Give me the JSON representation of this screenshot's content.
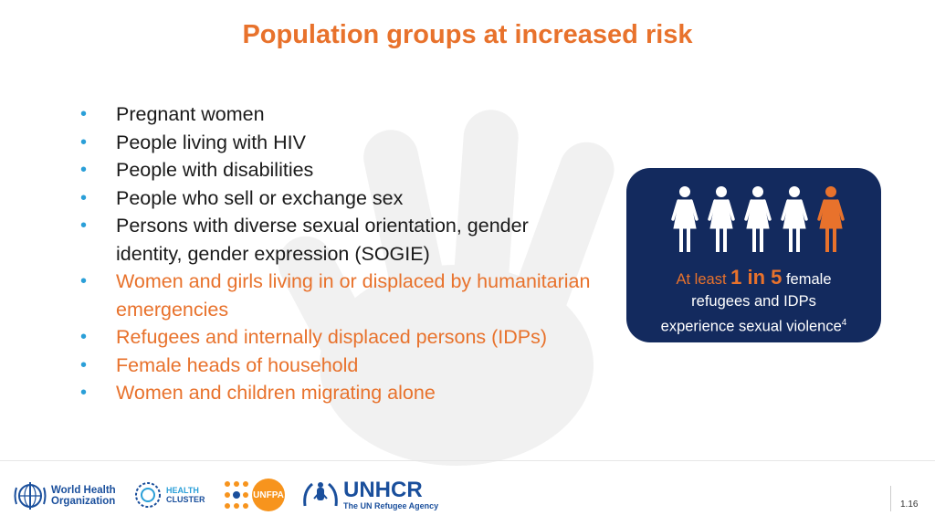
{
  "title": "Population groups at increased risk",
  "bullets": [
    {
      "text": "Pregnant women",
      "color": "#1a1a1a"
    },
    {
      "text": "People living with HIV",
      "color": "#1a1a1a"
    },
    {
      "text": "People with disabilities",
      "color": "#1a1a1a"
    },
    {
      "text": "People who sell or exchange sex",
      "color": "#1a1a1a"
    },
    {
      "text": "Persons with diverse sexual orientation, gender identity, gender expression (SOGIE)",
      "color": "#1a1a1a"
    },
    {
      "text": "Women and girls living in or displaced by humanitarian emergencies",
      "color": "#e8722c"
    },
    {
      "text": "Refugees and internally displaced persons (IDPs)",
      "color": "#e8722c"
    },
    {
      "text": "Female heads of household",
      "color": "#e8722c"
    },
    {
      "text": "Women and children migrating alone",
      "color": "#e8722c"
    }
  ],
  "callout": {
    "prefix": "At least",
    "highlight": "1 in 5",
    "suffix_line1": "female",
    "line2": "refugees and IDPs",
    "line3": "experience sexual violence",
    "footnote": "4",
    "figures_total": 5,
    "figures_highlighted": 1,
    "figure_icon": "woman-figure-icon",
    "bg_color": "#132a5e",
    "accent_color": "#e8722c"
  },
  "logos": {
    "who": {
      "line1": "World Health",
      "line2": "Organization"
    },
    "health_cluster": {
      "line1": "HEALTH",
      "line2": "CLUSTER"
    },
    "unfpa": {
      "text": "UNFPA"
    },
    "unhcr": {
      "name": "UNHCR",
      "tagline": "The UN Refugee Agency"
    }
  },
  "page_number": "1.16"
}
